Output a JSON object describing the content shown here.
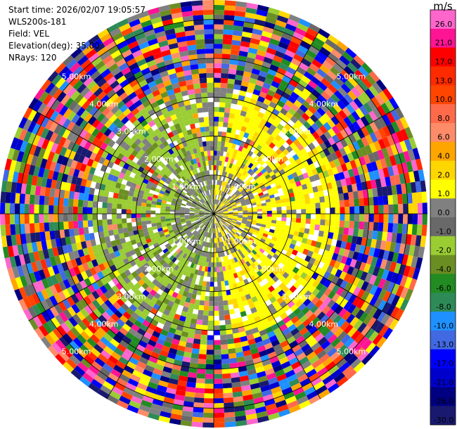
{
  "info": {
    "start_time": "Start time: 2026/02/07 19:05:57",
    "instrument": "WLS200s-181",
    "field": "Field: VEL",
    "elevation": "Elevation(deg): 35.00",
    "nrays": "NRays: 120"
  },
  "chart_data": {
    "type": "heatmap",
    "subtype": "polar-ppi",
    "field": "VEL",
    "units": "m/s",
    "nrays": 120,
    "elevation_deg": 35.0,
    "range_rings_km": [
      1.0,
      2.0,
      3.0,
      4.0,
      5.0
    ],
    "ring_label_texts": [
      "1.00km",
      "2.00km",
      "3.00km",
      "4.00km",
      "5.00km"
    ],
    "max_range_km": 5.5,
    "spokes_deg": [
      0,
      30,
      60,
      90,
      120,
      150,
      180,
      210,
      240,
      270,
      300,
      330
    ],
    "colorbar": {
      "title": "m/s",
      "tick_labels": [
        "26.0",
        "21.0",
        "17.0",
        "13.0",
        "10.0",
        "8.0",
        "6.0",
        "4.0",
        "2.0",
        "1.0",
        "0.0",
        "-1.0",
        "-2.0",
        "-4.0",
        "-6.0",
        "-8.0",
        "-10.0",
        "-13.0",
        "-17.0",
        "-21.0",
        "-26.0",
        "-30.0"
      ],
      "colors": [
        "#ff66cc",
        "#ff1493",
        "#ff0000",
        "#ff2a00",
        "#ff4500",
        "#ff6a4a",
        "#ff8c69",
        "#ffa500",
        "#ffd700",
        "#ffff00",
        "#808080",
        "#696969",
        "#9acd32",
        "#6b8e23",
        "#228b22",
        "#2e8b57",
        "#1e90ff",
        "#4169e1",
        "#0000ff",
        "#0000cd",
        "#000080",
        "#191970"
      ]
    },
    "approx_regions": [
      {
        "description_sector": "west",
        "dominant_value": -2.0
      },
      {
        "description_sector": "east",
        "dominant_value": 2.0
      },
      {
        "description_sector": "center",
        "dominant_value": 0.0
      },
      {
        "description_sector": "outer",
        "dominant_value": "noisy"
      }
    ]
  }
}
